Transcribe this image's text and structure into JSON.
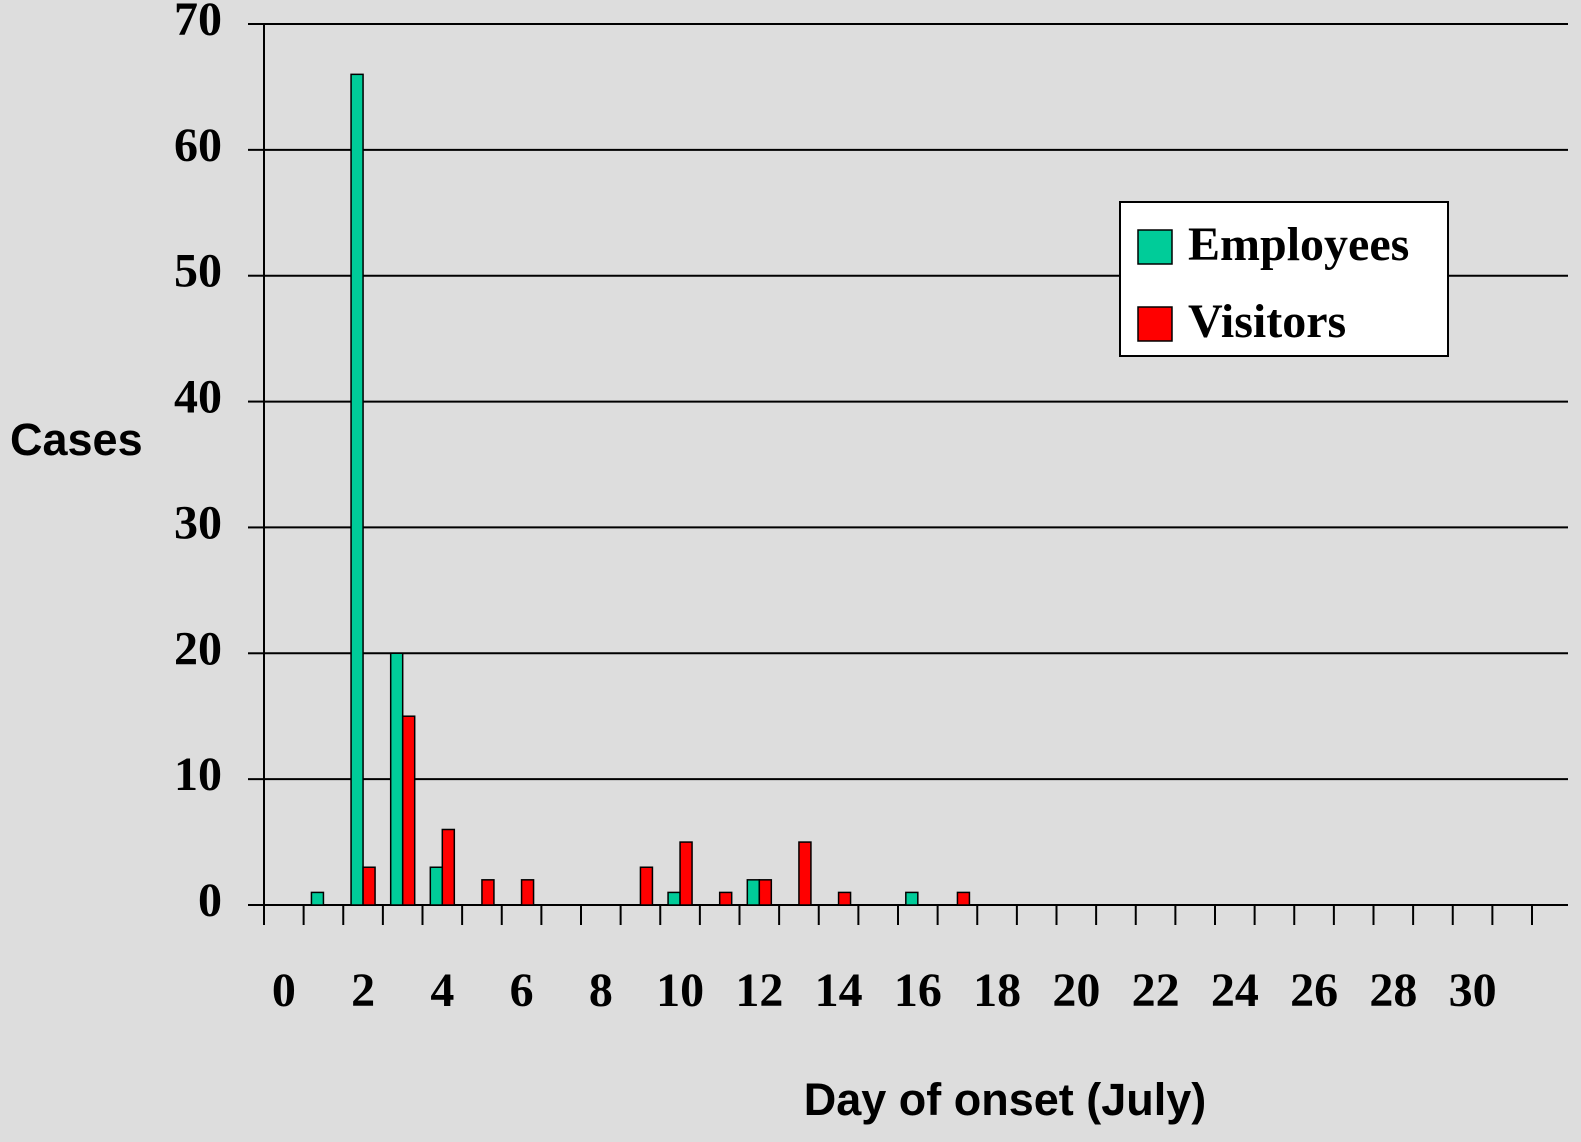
{
  "chart_data": {
    "type": "bar",
    "x_label": "Day of onset (July)",
    "y_label": "Cases",
    "categories": [
      "0",
      null,
      "2",
      null,
      "4",
      null,
      "6",
      null,
      "8",
      null,
      "10",
      null,
      "12",
      null,
      "14",
      null,
      "16",
      null,
      "18",
      null,
      "20",
      null,
      "22",
      null,
      "24",
      null,
      "26",
      null,
      "28",
      null,
      "30",
      null
    ],
    "series": [
      {
        "name": "Employees",
        "color": "#00cc99",
        "values": [
          0,
          1,
          66,
          20,
          3,
          0,
          0,
          0,
          0,
          0,
          1,
          0,
          2,
          0,
          0,
          0,
          1,
          0,
          0,
          0,
          0,
          0,
          0,
          0,
          0,
          0,
          0,
          0,
          0,
          0,
          0,
          0
        ]
      },
      {
        "name": "Visitors",
        "color": "#ff0000",
        "values": [
          0,
          0,
          3,
          15,
          6,
          2,
          2,
          0,
          0,
          3,
          5,
          1,
          2,
          5,
          1,
          0,
          0,
          1,
          0,
          0,
          0,
          0,
          0,
          0,
          0,
          0,
          0,
          0,
          0,
          0,
          0,
          0
        ]
      }
    ],
    "ylim": [
      0,
      70
    ],
    "yticks": [
      0,
      10,
      20,
      30,
      40,
      50,
      60,
      70
    ],
    "grid": true,
    "legend": "upper right"
  }
}
